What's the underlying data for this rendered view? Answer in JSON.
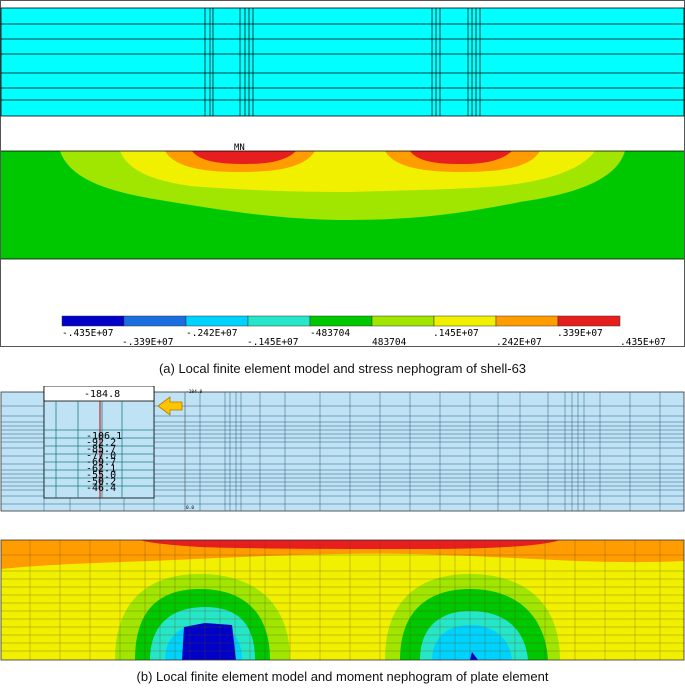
{
  "panel_a": {
    "node_label": "MN",
    "colorbar": {
      "colors": [
        "#0000c8",
        "#1a6fe0",
        "#00d2ff",
        "#25e6c8",
        "#00c800",
        "#a0e600",
        "#f0f000",
        "#ff9c00",
        "#e61e1e"
      ],
      "labels_top": [
        "-.435E+07",
        "-.242E+07",
        "-483704",
        ".145E+07",
        ".339E+07"
      ],
      "labels_bottom": [
        "-.339E+07",
        "-.145E+07",
        "483704",
        ".242E+07",
        ".435E+07"
      ]
    },
    "caption": "(a) Local finite element model and stress nephogram of shell-63"
  },
  "panel_b": {
    "callout_value": "-184.8",
    "callout_values": [
      "-106.1",
      "-92.2",
      "-85.7",
      "-77.0",
      "-69.7",
      "-62.1",
      "-55.0",
      "-50.2",
      "-46.4"
    ],
    "tiny_top_value": "-184.8",
    "tiny_bottom_value": "0.0",
    "caption": "(b) Local finite element model and moment nephogram of plate element"
  },
  "colors": {
    "mesh_blue": "#00ffff",
    "plate_blue": "#bfe3f5",
    "green": "#00c800",
    "yellow": "#f0f000",
    "red": "#e61e1e",
    "orange": "#ff9c00",
    "arrow": "#ffc400"
  }
}
